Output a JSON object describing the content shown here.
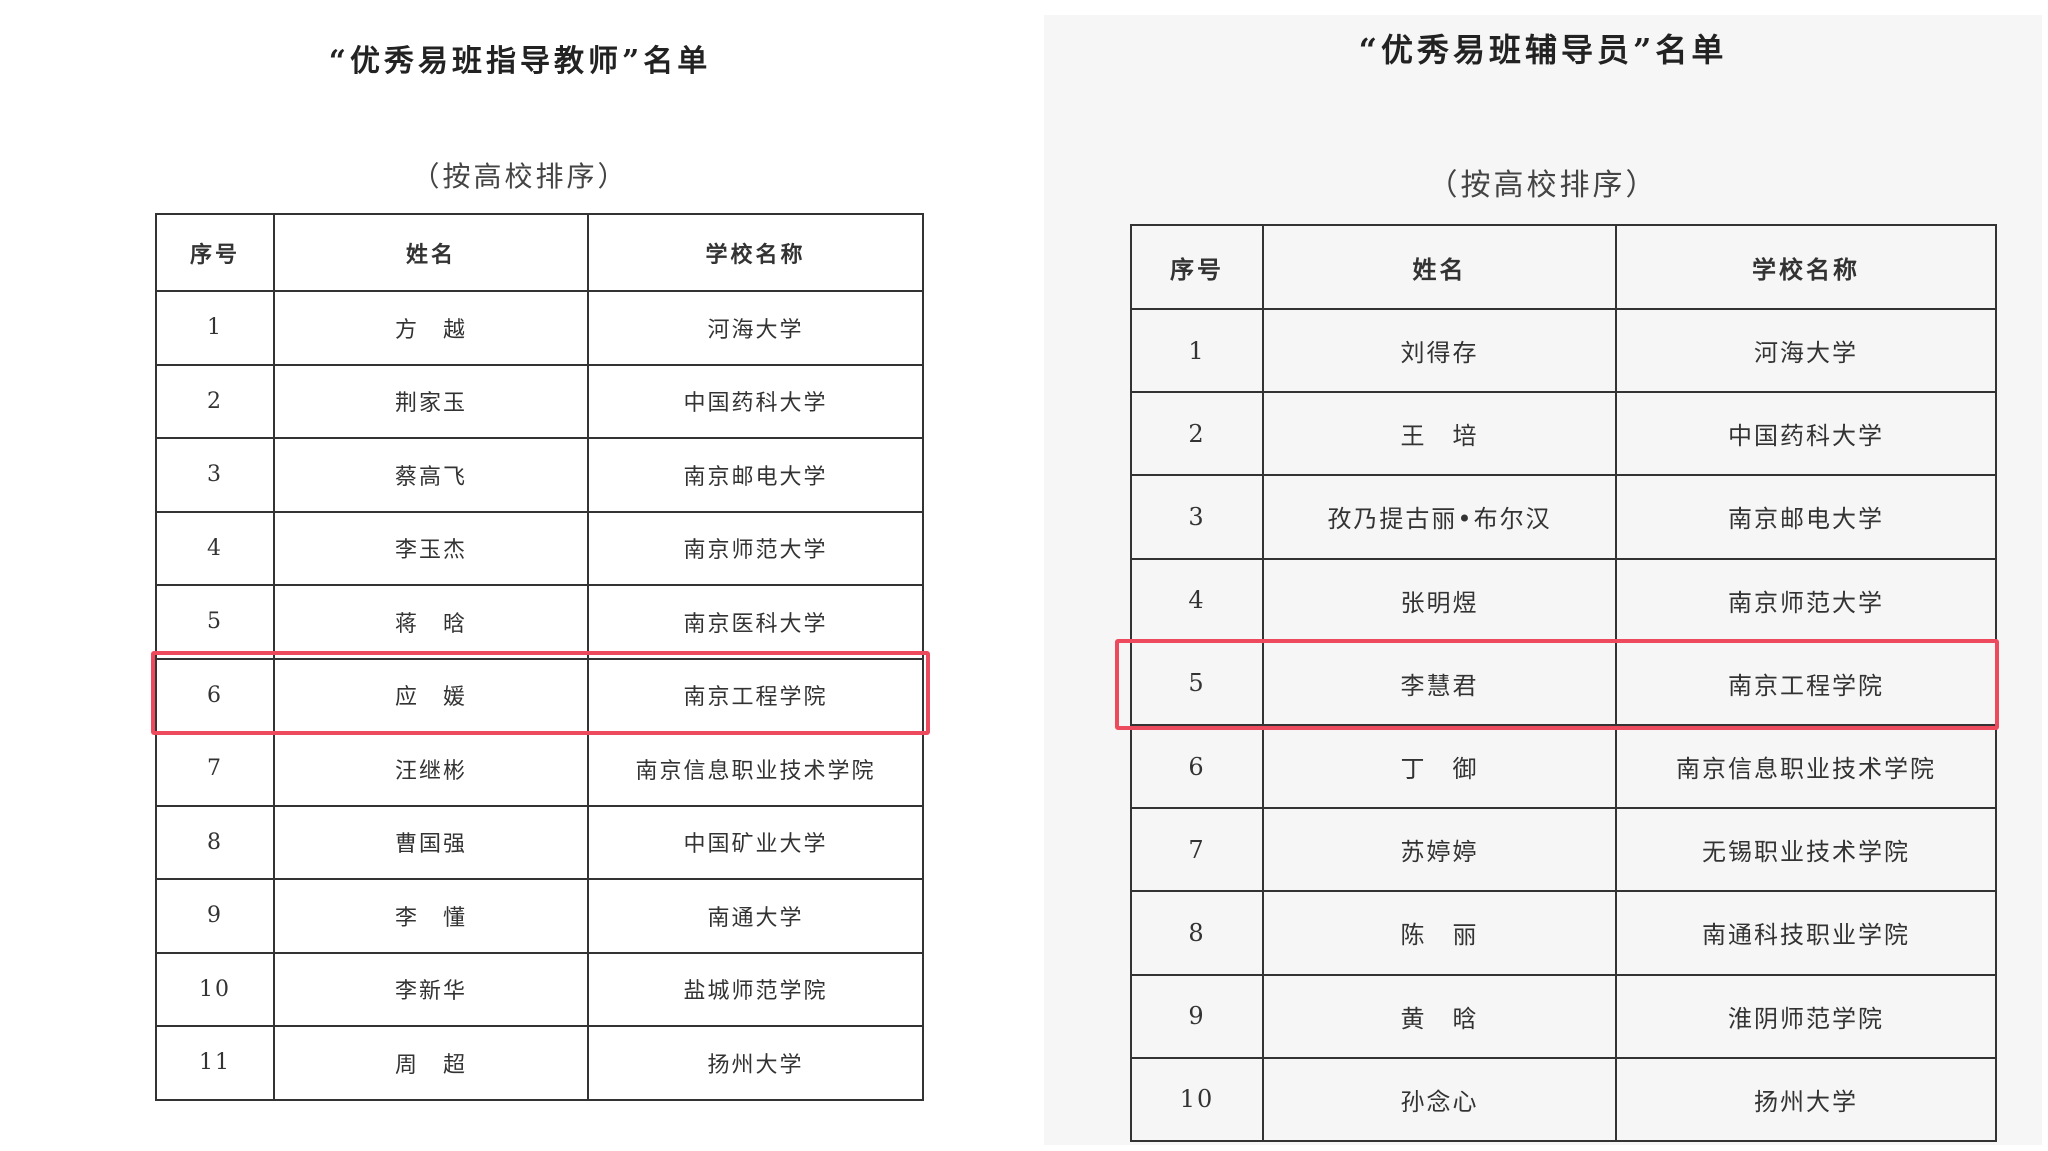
{
  "left": {
    "title": "“优秀易班指导教师”名单",
    "subtitle": "（按高校排序）",
    "headers": [
      "序号",
      "姓名",
      "学校名称"
    ],
    "rows": [
      [
        "1",
        "方　越",
        "河海大学"
      ],
      [
        "2",
        "荆家玉",
        "中国药科大学"
      ],
      [
        "3",
        "蔡高飞",
        "南京邮电大学"
      ],
      [
        "4",
        "李玉杰",
        "南京师范大学"
      ],
      [
        "5",
        "蒋　晗",
        "南京医科大学"
      ],
      [
        "6",
        "应　媛",
        "南京工程学院"
      ],
      [
        "7",
        "汪继彬",
        "南京信息职业技术学院"
      ],
      [
        "8",
        "曹国强",
        "中国矿业大学"
      ],
      [
        "9",
        "李　懂",
        "南通大学"
      ],
      [
        "10",
        "李新华",
        "盐城师范学院"
      ],
      [
        "11",
        "周　超",
        "扬州大学"
      ]
    ],
    "highlighted_row": 6
  },
  "right": {
    "title": "“优秀易班辅导员”名单",
    "subtitle": "（按高校排序）",
    "headers": [
      "序号",
      "姓名",
      "学校名称"
    ],
    "rows": [
      [
        "1",
        "刘得存",
        "河海大学"
      ],
      [
        "2",
        "王　培",
        "中国药科大学"
      ],
      [
        "3",
        "孜乃提古丽•布尔汉",
        "南京邮电大学"
      ],
      [
        "4",
        "张明煜",
        "南京师范大学"
      ],
      [
        "5",
        "李慧君",
        "南京工程学院"
      ],
      [
        "6",
        "丁　御",
        "南京信息职业技术学院"
      ],
      [
        "7",
        "苏婷婷",
        "无锡职业技术学院"
      ],
      [
        "8",
        "陈　丽",
        "南通科技职业学院"
      ],
      [
        "9",
        "黄　晗",
        "淮阴师范学院"
      ],
      [
        "10",
        "孙念心",
        "扬州大学"
      ]
    ],
    "highlighted_row": 5
  },
  "colors": {
    "highlight": "#ee4a5e",
    "right_background": "#f6f6f6"
  }
}
